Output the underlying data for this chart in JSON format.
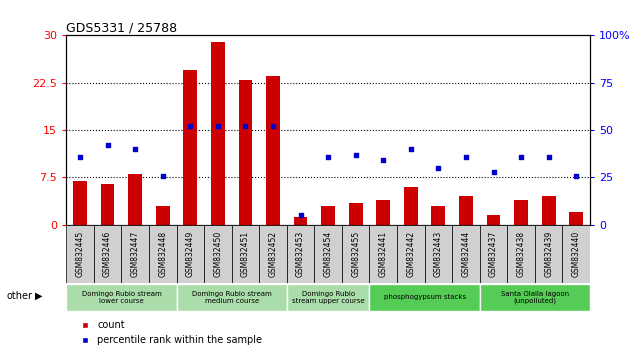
{
  "title": "GDS5331 / 25788",
  "samples": [
    "GSM832445",
    "GSM832446",
    "GSM832447",
    "GSM832448",
    "GSM832449",
    "GSM832450",
    "GSM832451",
    "GSM832452",
    "GSM832453",
    "GSM832454",
    "GSM832455",
    "GSM832441",
    "GSM832442",
    "GSM832443",
    "GSM832444",
    "GSM832437",
    "GSM832438",
    "GSM832439",
    "GSM832440"
  ],
  "counts": [
    7.0,
    6.5,
    8.0,
    3.0,
    24.5,
    29.0,
    23.0,
    23.5,
    1.2,
    3.0,
    3.5,
    4.0,
    6.0,
    3.0,
    4.5,
    1.5,
    4.0,
    4.5,
    2.0
  ],
  "percentile_ranks": [
    36,
    42,
    40,
    26,
    52,
    52,
    52,
    52,
    5,
    36,
    37,
    34,
    40,
    30,
    36,
    28,
    36,
    36,
    26
  ],
  "groups": [
    {
      "label": "Domingo Rubio stream\nlower course",
      "start": 0,
      "end": 3,
      "color": "#aaddaa"
    },
    {
      "label": "Domingo Rubio stream\nmedium course",
      "start": 4,
      "end": 7,
      "color": "#aaddaa"
    },
    {
      "label": "Domingo Rubio\nstream upper course",
      "start": 8,
      "end": 10,
      "color": "#aaddaa"
    },
    {
      "label": "phosphogypsum stacks",
      "start": 11,
      "end": 14,
      "color": "#55cc55"
    },
    {
      "label": "Santa Olalla lagoon\n(unpolluted)",
      "start": 15,
      "end": 18,
      "color": "#55cc55"
    }
  ],
  "ylim_left": [
    0,
    30
  ],
  "ylim_right": [
    0,
    100
  ],
  "yticks_left": [
    0,
    7.5,
    15,
    22.5,
    30
  ],
  "yticks_right": [
    0,
    25,
    50,
    75,
    100
  ],
  "bar_color": "#cc0000",
  "scatter_color": "#0000cc",
  "bar_width": 0.5,
  "group_colors": [
    "#aaddaa",
    "#aaddaa",
    "#aaddaa",
    "#55cc55",
    "#55cc55"
  ],
  "group_starts": [
    0,
    4,
    8,
    11,
    15
  ],
  "group_ends": [
    4,
    8,
    11,
    15,
    19
  ],
  "group_labels": [
    "Domingo Rubio stream\nlower course",
    "Domingo Rubio stream\nmedium course",
    "Domingo Rubio\nstream upper course",
    "phosphogypsum stacks",
    "Santa Olalla lagoon\n(unpolluted)"
  ]
}
